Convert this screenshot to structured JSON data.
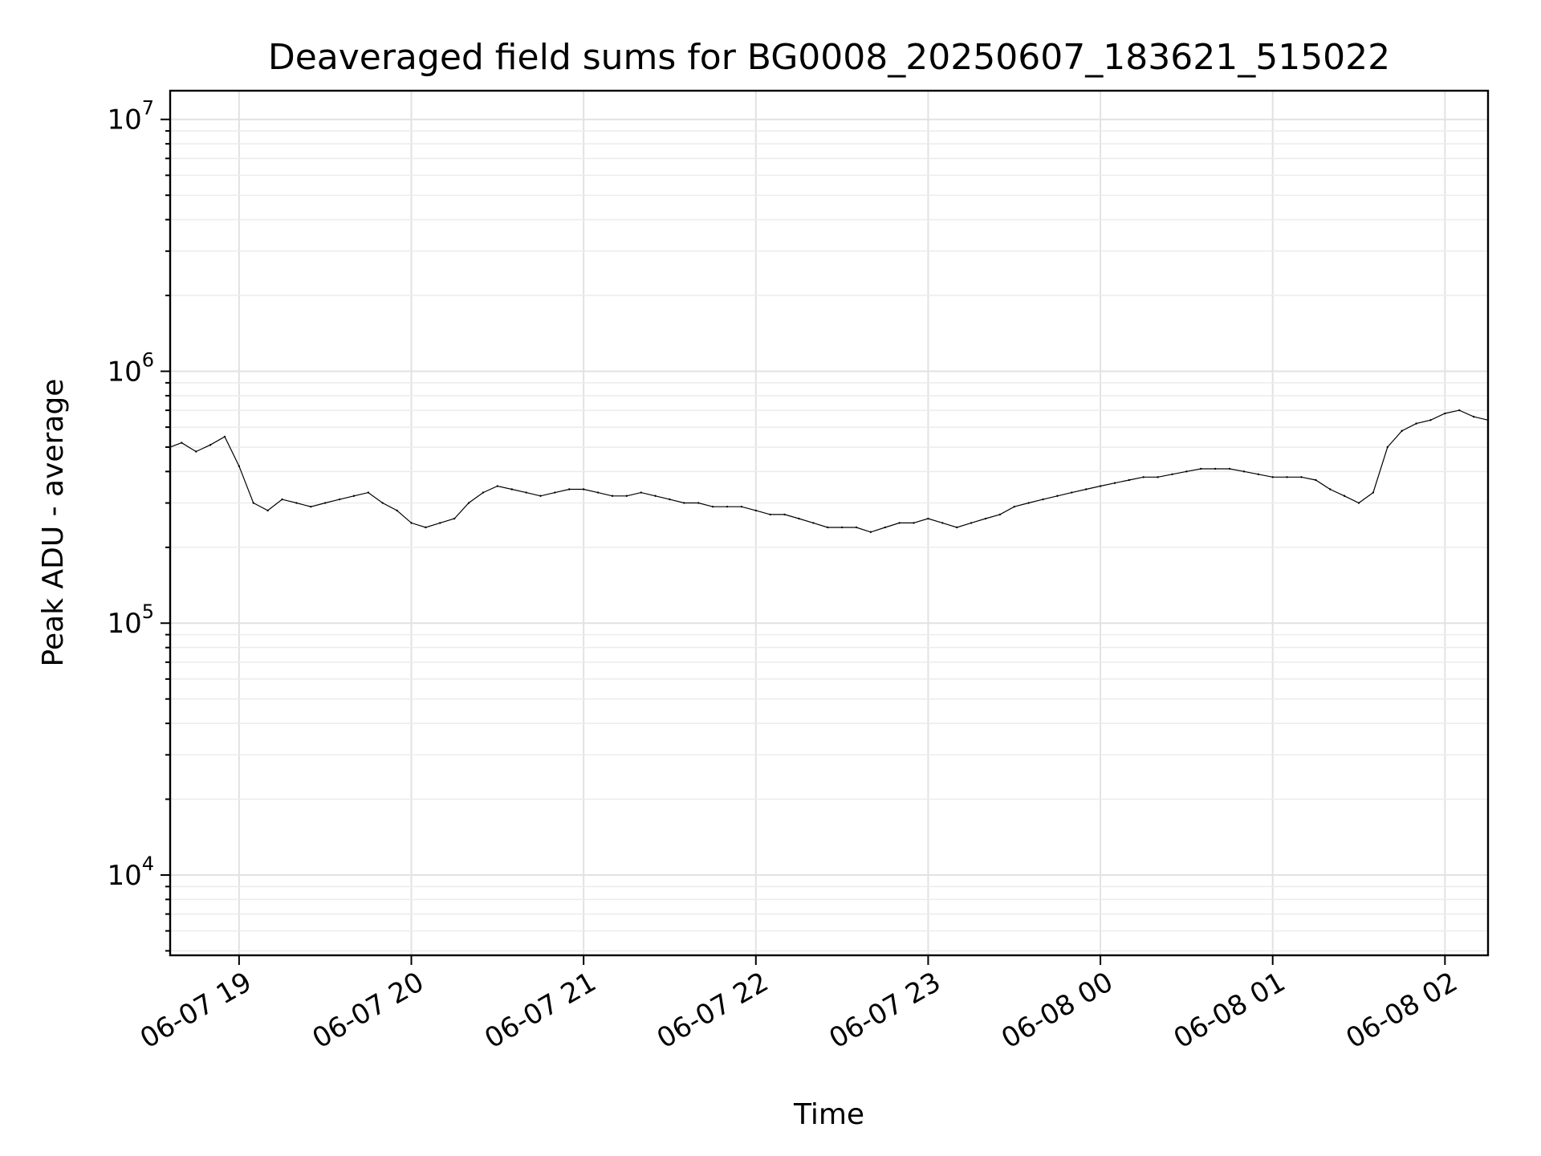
{
  "chart_data": {
    "type": "line",
    "title": "Deaveraged field sums for BG0008_20250607_183621_515022",
    "xlabel": "Time",
    "ylabel": "Peak ADU - average",
    "yscale": "log",
    "ylim": [
      4800,
      13000000
    ],
    "xlim": [
      "2025-06-07 18:36",
      "2025-06-08 02:15"
    ],
    "grid": true,
    "legend": "none",
    "line_color": "#000000",
    "x_ticks": [
      {
        "value": "2025-06-07 19:00",
        "label": "06-07 19"
      },
      {
        "value": "2025-06-07 20:00",
        "label": "06-07 20"
      },
      {
        "value": "2025-06-07 21:00",
        "label": "06-07 21"
      },
      {
        "value": "2025-06-07 22:00",
        "label": "06-07 22"
      },
      {
        "value": "2025-06-07 23:00",
        "label": "06-07 23"
      },
      {
        "value": "2025-06-08 00:00",
        "label": "06-08 00"
      },
      {
        "value": "2025-06-08 01:00",
        "label": "06-08 01"
      },
      {
        "value": "2025-06-08 02:00",
        "label": "06-08 02"
      }
    ],
    "y_ticks": [
      {
        "value": 10000,
        "base": "10",
        "exp": "4"
      },
      {
        "value": 100000,
        "base": "10",
        "exp": "5"
      },
      {
        "value": 1000000,
        "base": "10",
        "exp": "6"
      },
      {
        "value": 10000000,
        "base": "10",
        "exp": "7"
      }
    ],
    "series": [
      {
        "x": [
          "2025-06-07 18:36",
          "2025-06-07 18:40",
          "2025-06-07 18:45",
          "2025-06-07 18:50",
          "2025-06-07 18:55",
          "2025-06-07 19:00",
          "2025-06-07 19:05",
          "2025-06-07 19:10",
          "2025-06-07 19:15",
          "2025-06-07 19:20",
          "2025-06-07 19:25",
          "2025-06-07 19:30",
          "2025-06-07 19:35",
          "2025-06-07 19:40",
          "2025-06-07 19:45",
          "2025-06-07 19:50",
          "2025-06-07 19:55",
          "2025-06-07 20:00",
          "2025-06-07 20:05",
          "2025-06-07 20:10",
          "2025-06-07 20:15",
          "2025-06-07 20:20",
          "2025-06-07 20:25",
          "2025-06-07 20:30",
          "2025-06-07 20:35",
          "2025-06-07 20:40",
          "2025-06-07 20:45",
          "2025-06-07 20:50",
          "2025-06-07 20:55",
          "2025-06-07 21:00",
          "2025-06-07 21:05",
          "2025-06-07 21:10",
          "2025-06-07 21:15",
          "2025-06-07 21:20",
          "2025-06-07 21:25",
          "2025-06-07 21:30",
          "2025-06-07 21:35",
          "2025-06-07 21:40",
          "2025-06-07 21:45",
          "2025-06-07 21:50",
          "2025-06-07 21:55",
          "2025-06-07 22:00",
          "2025-06-07 22:05",
          "2025-06-07 22:10",
          "2025-06-07 22:15",
          "2025-06-07 22:20",
          "2025-06-07 22:25",
          "2025-06-07 22:30",
          "2025-06-07 22:35",
          "2025-06-07 22:40",
          "2025-06-07 22:45",
          "2025-06-07 22:50",
          "2025-06-07 22:55",
          "2025-06-07 23:00",
          "2025-06-07 23:05",
          "2025-06-07 23:10",
          "2025-06-07 23:15",
          "2025-06-07 23:20",
          "2025-06-07 23:25",
          "2025-06-07 23:30",
          "2025-06-07 23:35",
          "2025-06-07 23:40",
          "2025-06-07 23:45",
          "2025-06-07 23:50",
          "2025-06-07 23:55",
          "2025-06-08 00:00",
          "2025-06-08 00:05",
          "2025-06-08 00:10",
          "2025-06-08 00:15",
          "2025-06-08 00:20",
          "2025-06-08 00:25",
          "2025-06-08 00:30",
          "2025-06-08 00:35",
          "2025-06-08 00:40",
          "2025-06-08 00:45",
          "2025-06-08 00:50",
          "2025-06-08 00:55",
          "2025-06-08 01:00",
          "2025-06-08 01:05",
          "2025-06-08 01:10",
          "2025-06-08 01:15",
          "2025-06-08 01:20",
          "2025-06-08 01:25",
          "2025-06-08 01:30",
          "2025-06-08 01:35",
          "2025-06-08 01:40",
          "2025-06-08 01:45",
          "2025-06-08 01:50",
          "2025-06-08 01:55",
          "2025-06-08 02:00",
          "2025-06-08 02:05",
          "2025-06-08 02:10",
          "2025-06-08 02:15"
        ],
        "y": [
          500000,
          520000,
          480000,
          510000,
          550000,
          420000,
          300000,
          280000,
          310000,
          300000,
          290000,
          300000,
          310000,
          320000,
          330000,
          300000,
          280000,
          250000,
          240000,
          250000,
          260000,
          300000,
          330000,
          350000,
          340000,
          330000,
          320000,
          330000,
          340000,
          340000,
          330000,
          320000,
          320000,
          330000,
          320000,
          310000,
          300000,
          300000,
          290000,
          290000,
          290000,
          280000,
          270000,
          270000,
          260000,
          250000,
          240000,
          240000,
          240000,
          230000,
          240000,
          250000,
          250000,
          260000,
          250000,
          240000,
          250000,
          260000,
          270000,
          290000,
          300000,
          310000,
          320000,
          330000,
          340000,
          350000,
          360000,
          370000,
          380000,
          380000,
          390000,
          400000,
          410000,
          410000,
          410000,
          400000,
          390000,
          380000,
          380000,
          380000,
          370000,
          340000,
          320000,
          300000,
          330000,
          500000,
          580000,
          620000,
          640000,
          680000,
          700000,
          660000,
          640000
        ]
      }
    ],
    "annotations": []
  }
}
